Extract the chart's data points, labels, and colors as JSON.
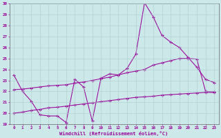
{
  "xlabel": "Windchill (Refroidissement éolien,°C)",
  "background_color": "#cce8e8",
  "grid_color": "#aacccc",
  "line_color": "#990099",
  "spine_color": "#666666",
  "xlim_min": -0.5,
  "xlim_max": 23.5,
  "ylim_min": 19,
  "ylim_max": 30,
  "xtick_vals": [
    0,
    1,
    2,
    3,
    4,
    5,
    6,
    7,
    8,
    9,
    10,
    11,
    12,
    13,
    14,
    15,
    16,
    17,
    18,
    19,
    20,
    21,
    22,
    23
  ],
  "ytick_vals": [
    19,
    20,
    21,
    22,
    23,
    24,
    25,
    26,
    27,
    28,
    29,
    30
  ],
  "line1_x": [
    0,
    1,
    2,
    3,
    4,
    5,
    6,
    7,
    8,
    9,
    10,
    11,
    12,
    13,
    14,
    15,
    16,
    17,
    18,
    19,
    20,
    21,
    22,
    23
  ],
  "line1_y": [
    23.5,
    22.0,
    21.1,
    19.85,
    19.75,
    19.75,
    19.15,
    23.1,
    22.4,
    19.3,
    23.2,
    23.6,
    23.5,
    24.1,
    25.4,
    30.1,
    28.8,
    27.1,
    26.5,
    26.0,
    25.1,
    24.2,
    23.1,
    22.8
  ],
  "line2_x": [
    0,
    1,
    2,
    3,
    4,
    5,
    6,
    7,
    8,
    9,
    10,
    11,
    12,
    13,
    14,
    15,
    16,
    17,
    18,
    19,
    20,
    21,
    22,
    23
  ],
  "line2_y": [
    22.15,
    22.2,
    22.3,
    22.4,
    22.5,
    22.55,
    22.6,
    22.75,
    22.85,
    23.0,
    23.15,
    23.3,
    23.5,
    23.7,
    23.85,
    24.0,
    24.4,
    24.6,
    24.8,
    25.0,
    25.0,
    24.95,
    22.0,
    21.95
  ],
  "line3_x": [
    0,
    1,
    2,
    3,
    4,
    5,
    6,
    7,
    8,
    9,
    10,
    11,
    12,
    13,
    14,
    15,
    16,
    17,
    18,
    19,
    20,
    21,
    22,
    23
  ],
  "line3_y": [
    20.0,
    20.1,
    20.25,
    20.35,
    20.5,
    20.55,
    20.65,
    20.75,
    20.85,
    20.95,
    21.05,
    21.15,
    21.25,
    21.35,
    21.45,
    21.5,
    21.55,
    21.65,
    21.7,
    21.75,
    21.8,
    21.85,
    21.9,
    21.9
  ]
}
